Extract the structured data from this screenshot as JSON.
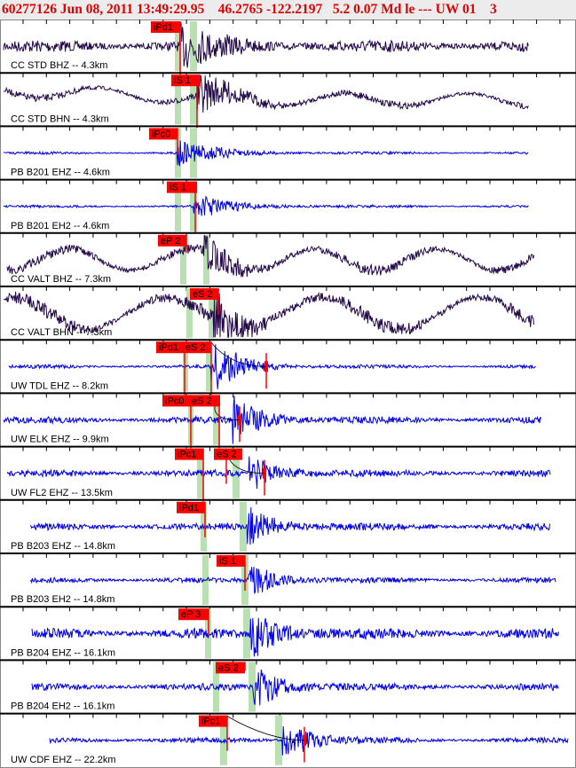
{
  "header": {
    "text": "60277126 Jun 08, 2011 13:49:29.95    46.2765 -122.2197   5.2 0.07 Md le --- UW 01    3"
  },
  "colors": {
    "cc_trace": "#250a4a",
    "trace": "#0000ee",
    "pick": "#ff0000",
    "window": "#b8e0b0"
  },
  "chart_data": {
    "type": "line",
    "title": "60277126 Jun 08, 2011 13:49:29.95 46.2765 -122.2197 5.2 0.07 Md le --- UW 01",
    "traces": [
      {
        "label": "CC STD BHZ -- 4.3km",
        "picks": [
          "iPd1"
        ]
      },
      {
        "label": "CC STD BHN -- 4.3km",
        "picks": [
          "iS 1"
        ]
      },
      {
        "label": "PB B201 EHZ -- 4.6km",
        "picks": [
          "iPc0"
        ]
      },
      {
        "label": "PB B201 EH2 -- 4.6km",
        "picks": [
          "iS 1"
        ]
      },
      {
        "label": "CC VALT BHZ -- 7.3km",
        "picks": [
          "eP 2"
        ]
      },
      {
        "label": "CC VALT BHN -- 7.3km",
        "picks": [
          "eS 2"
        ]
      },
      {
        "label": "UW TDL EHZ -- 8.2km",
        "picks": [
          "iPd1",
          "eS 2"
        ]
      },
      {
        "label": "UW ELK EHZ -- 9.9km",
        "picks": [
          "iPc0",
          "eS 2"
        ]
      },
      {
        "label": "UW FL2 EHZ -- 13.5km",
        "picks": [
          "iPc1",
          "eS 2"
        ]
      },
      {
        "label": "PB B203 EHZ -- 14.8km",
        "picks": [
          "iPd1"
        ]
      },
      {
        "label": "PB B203 EH2 -- 14.8km",
        "picks": [
          "iS 1"
        ]
      },
      {
        "label": "PB B204 EHZ -- 16.1km",
        "picks": [
          "eP 3"
        ]
      },
      {
        "label": "PB B204 EH2 -- 16.1km",
        "picks": [
          "eS 2"
        ]
      },
      {
        "label": "UW CDF EHZ -- 22.2km",
        "picks": [
          "iPc1"
        ]
      }
    ]
  }
}
